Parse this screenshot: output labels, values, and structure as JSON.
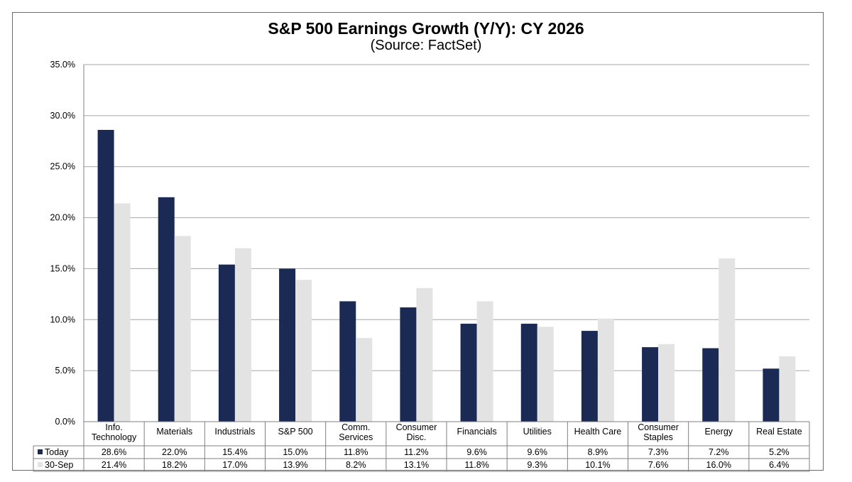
{
  "title": "S&P 500 Earnings Growth (Y/Y): CY 2026",
  "subtitle": "(Source: FactSet)",
  "colors": {
    "today": "#1b2a55",
    "sep30": "#e3e3e3",
    "grid": "#a6a6a6",
    "axis": "#808080"
  },
  "chart_data": {
    "type": "bar",
    "title": "S&P 500 Earnings Growth (Y/Y): CY 2026",
    "subtitle": "(Source: FactSet)",
    "categories": [
      [
        "Info.",
        "Technology"
      ],
      [
        "Materials"
      ],
      [
        "Industrials"
      ],
      [
        "S&P 500"
      ],
      [
        "Comm.",
        "Services"
      ],
      [
        "Consumer",
        "Disc."
      ],
      [
        "Financials"
      ],
      [
        "Utilities"
      ],
      [
        "Health Care"
      ],
      [
        "Consumer",
        "Staples"
      ],
      [
        "Energy"
      ],
      [
        "Real Estate"
      ]
    ],
    "series": [
      {
        "name": "Today",
        "values": [
          28.6,
          22.0,
          15.4,
          15.0,
          11.8,
          11.2,
          9.6,
          9.6,
          8.9,
          7.3,
          7.2,
          5.2
        ],
        "labels": [
          "28.6%",
          "22.0%",
          "15.4%",
          "15.0%",
          "11.8%",
          "11.2%",
          "9.6%",
          "9.6%",
          "8.9%",
          "7.3%",
          "7.2%",
          "5.2%"
        ]
      },
      {
        "name": "30-Sep",
        "values": [
          21.4,
          18.2,
          17.0,
          13.9,
          8.2,
          13.1,
          11.8,
          9.3,
          10.1,
          7.6,
          16.0,
          6.4
        ],
        "labels": [
          "21.4%",
          "18.2%",
          "17.0%",
          "13.9%",
          "8.2%",
          "13.1%",
          "11.8%",
          "9.3%",
          "10.1%",
          "7.6%",
          "16.0%",
          "6.4%"
        ]
      }
    ],
    "yticks": [
      "0.0%",
      "5.0%",
      "10.0%",
      "15.0%",
      "20.0%",
      "25.0%",
      "30.0%",
      "35.0%"
    ],
    "ylim": [
      0,
      35
    ],
    "grid": true,
    "legend": "data-table"
  }
}
